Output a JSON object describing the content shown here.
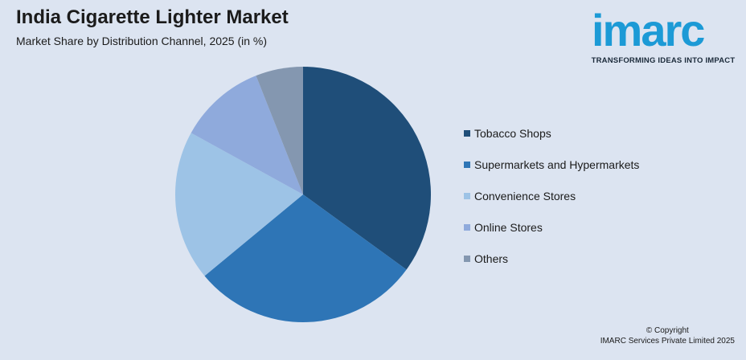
{
  "header": {
    "title": "India Cigarette Lighter Market",
    "subtitle": "Market Share by Distribution Channel, 2025 (in %)"
  },
  "logo": {
    "wordmark": "imarc",
    "tagline": "TRANSFORMING IDEAS INTO IMPACT",
    "color": "#1c9ad6"
  },
  "chart_data": {
    "type": "pie",
    "title": "India Cigarette Lighter Market",
    "subtitle": "Market Share by Distribution Channel, 2025 (in %)",
    "legend_position": "right",
    "slices": [
      {
        "label": "Tobacco Shops",
        "value": 35,
        "color": "#1f4e79"
      },
      {
        "label": "Supermarkets and Hypermarkets",
        "value": 29,
        "color": "#2e75b6"
      },
      {
        "label": "Convenience Stores",
        "value": 19,
        "color": "#9dc3e6"
      },
      {
        "label": "Online Stores",
        "value": 11,
        "color": "#8faadc"
      },
      {
        "label": "Others",
        "value": 6,
        "color": "#8497b0"
      }
    ]
  },
  "footer": {
    "copyright_line1": "© Copyright",
    "copyright_line2": "IMARC Services Private Limited 2025"
  }
}
